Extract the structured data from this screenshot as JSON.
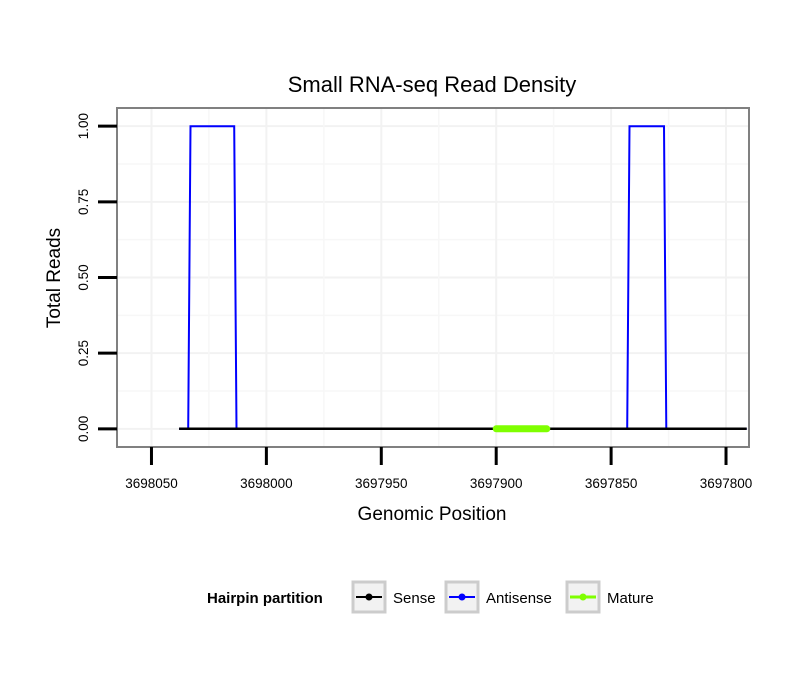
{
  "chart_data": {
    "type": "line",
    "title": "Small RNA-seq Read Density",
    "xlabel": "Genomic Position",
    "ylabel": "Total Reads",
    "x_reversed": true,
    "xlim": [
      3698065,
      3697790
    ],
    "ylim": [
      -0.06,
      1.06
    ],
    "x_ticks": [
      3698050,
      3698000,
      3697950,
      3697900,
      3697850,
      3697800
    ],
    "x_tick_labels": [
      "3698050",
      "3698000",
      "3697950",
      "3697900",
      "3697850",
      "3697800"
    ],
    "y_ticks": [
      0,
      0.25,
      0.5,
      0.75,
      1.0
    ],
    "y_tick_labels": [
      "0.00",
      "0.25",
      "0.50",
      "0.75",
      "1.00"
    ],
    "grid": true,
    "legend_position": "bottom",
    "legend_title": "Hairpin partition",
    "series": [
      {
        "name": "Sense",
        "color": "#000000",
        "x": [
          3698038,
          3697791
        ],
        "y": [
          0,
          0
        ]
      },
      {
        "name": "Antisense",
        "color": "#0000ff",
        "x": [
          3698038,
          3698034,
          3698033,
          3698014,
          3698013,
          3698012,
          3697843,
          3697842,
          3697827,
          3697826,
          3697791
        ],
        "y": [
          0,
          0,
          1,
          1,
          0,
          0,
          0,
          1,
          1,
          0,
          0
        ]
      },
      {
        "name": "Mature",
        "color": "#7fff00",
        "x": [
          3697900,
          3697878
        ],
        "y": [
          0,
          0
        ]
      }
    ]
  }
}
